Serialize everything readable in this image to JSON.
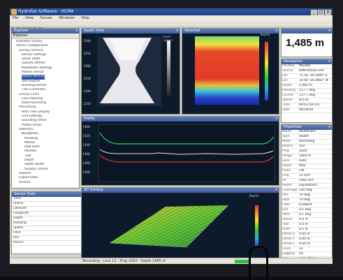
{
  "window": {
    "title": "Hydrofax Software - HCMA"
  },
  "menu": [
    "File",
    "View",
    "Survey",
    "Windows",
    "Help"
  ],
  "explorer": {
    "title": "Explorer",
    "tabs": "Explorer",
    "items": [
      "Hydrofax Survey",
      "Vessel Configuration",
      "Survey Sensors",
      "Sensor Settings",
      "Sonar Head",
      "Subsea Offsets",
      "Multibeam Settings",
      "Motion Sensor",
      "Sound Velocity",
      "GPS Source",
      "Heading Sensor",
      "Tide Correction",
      "Survey Lines",
      "Line Planning",
      "Data Recording",
      "Processing",
      "Real Time Display",
      "Grid Settings",
      "Sounding Filters",
      "Profile Views",
      "Statistics",
      "Navigation",
      "Heading",
      "Motion",
      "Raw Data",
      "Position",
      "Tide",
      "Depth",
      "Swath Width",
      "Quality Control",
      "Reports",
      "Export Data",
      "Archive"
    ],
    "selected_index": 8
  },
  "bottom_table": {
    "title": "Sensor Data",
    "rows": [
      "Time",
      "Status",
      "Latitude",
      "Longitude",
      "Depth",
      "Heading",
      "Speed",
      "Pitch",
      "Roll",
      "Heave"
    ]
  },
  "panes": {
    "fan": {
      "title": "Swath View",
      "axis_y": [
        "1500",
        "1450",
        "1400",
        "1350",
        "1300",
        "1250"
      ],
      "label_right": "Level (gray)"
    },
    "heat": {
      "title": "Waterfall",
      "axis_label": "Depth"
    },
    "lines": {
      "title": "Profile",
      "axis_y": [
        "1400",
        "1420",
        "1440",
        "1460",
        "1480",
        "1500"
      ]
    },
    "surf": {
      "title": "3D Surface",
      "axis_label": "Depth"
    }
  },
  "depth": {
    "value": "1,485 m"
  },
  "info": {
    "title": "Navigation",
    "rows": [
      {
        "k": "Position",
        "v": "MGS84"
      },
      {
        "k": "Source",
        "v": "Differential GPS"
      },
      {
        "k": "Lat",
        "v": "71 56' 29.5499\" S"
      },
      {
        "k": "Lon",
        "v": "10 46' 54.4802\" W"
      },
      {
        "k": "Depth",
        "v": "1,485 m"
      },
      {
        "k": "Heading",
        "v": "117.7 deg"
      },
      {
        "k": "Course",
        "v": "117.7 deg"
      },
      {
        "k": "Speed",
        "v": "8.0 kn"
      },
      {
        "k": "Time",
        "v": "04:03:58 UTC"
      },
      {
        "k": "Date",
        "v": "04/18/20"
      }
    ]
  },
  "props": {
    "title": "Properties",
    "rows": [
      {
        "k": "Name",
        "v": "Multibeam"
      },
      {
        "k": "Type",
        "v": "Swath"
      },
      {
        "k": "Mode",
        "v": "Recording"
      },
      {
        "k": "Beams",
        "v": "432"
      },
      {
        "k": "Ping",
        "v": "1024"
      },
      {
        "k": "Range",
        "v": "3000 m"
      },
      {
        "k": "Gain",
        "v": "Auto"
      },
      {
        "k": "Power",
        "v": "Max"
      },
      {
        "k": "Pulse",
        "v": "CW"
      },
      {
        "k": "Freq",
        "v": "12 kHz"
      },
      {
        "k": "SV",
        "v": "1482 m/s"
      },
      {
        "k": "Swath",
        "v": "Equidistant"
      },
      {
        "k": "Coverage",
        "v": "140 deg"
      },
      {
        "k": "Port",
        "v": "70 deg"
      },
      {
        "k": "Stbd",
        "v": "70 deg"
      },
      {
        "k": "Filter",
        "v": "Enabled"
      },
      {
        "k": "Roll",
        "v": "0.2 deg"
      },
      {
        "k": "Pitch",
        "v": "0.1 deg"
      },
      {
        "k": "Heave",
        "v": "0.0 m"
      },
      {
        "k": "Tide",
        "v": "0.0 m"
      },
      {
        "k": "Draft",
        "v": "6.5 m"
      },
      {
        "k": "Offset X",
        "v": "0.00 m"
      },
      {
        "k": "Offset Y",
        "v": "0.00 m"
      },
      {
        "k": "Offset Z",
        "v": "0.00 m"
      },
      {
        "k": "Lines",
        "v": "12"
      },
      {
        "k": "Logging",
        "v": "On"
      },
      {
        "k": "File",
        "v": "Line_0012"
      },
      {
        "k": "Size",
        "v": "124 MB"
      },
      {
        "k": "Status",
        "v": "OK"
      },
      {
        "k": "Quality",
        "v": "Good"
      },
      {
        "k": "Clock",
        "v": "Synced"
      }
    ]
  },
  "status": {
    "text": "Recording - Line 12 - Ping 1024 - Depth 1485 m"
  }
}
